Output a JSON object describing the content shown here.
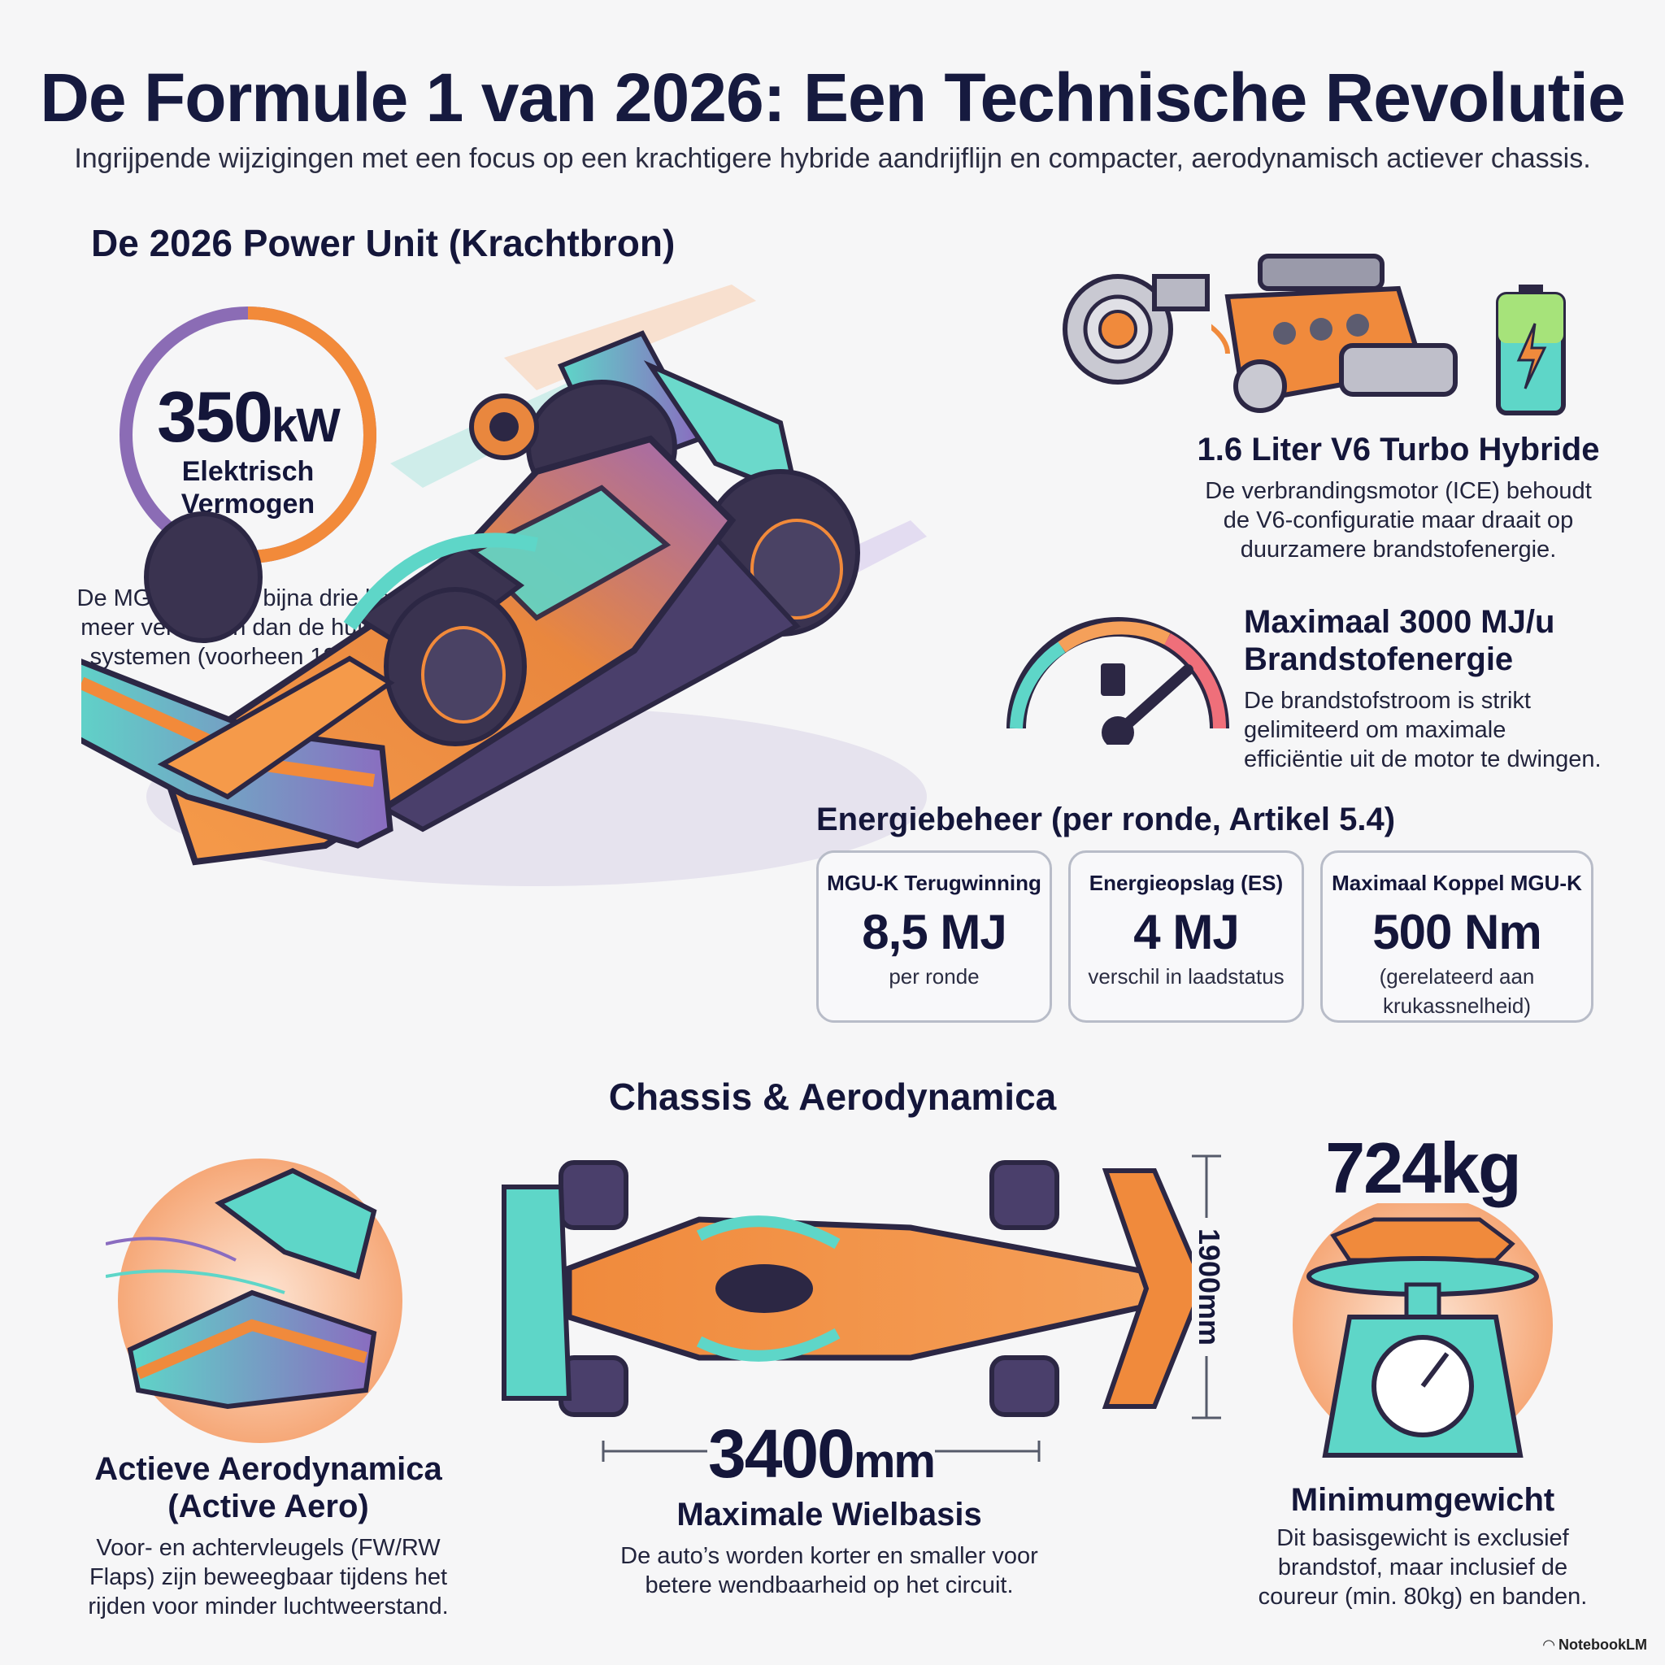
{
  "header": {
    "title": "De Formule 1 van 2026: Een Technische Revolutie",
    "subtitle": "Ingrijpende wijzigingen met een focus op een krachtigere hybride aandrijflijn en compacter, aerodynamisch actiever chassis."
  },
  "power_unit": {
    "heading": "De 2026 Power Unit (Krachtbron)",
    "electric": {
      "value": "350",
      "unit": "kW",
      "label_line1": "Elektrisch",
      "label_line2": "Vermogen",
      "desc_line1": "De MGU-K levert bijna drie keer",
      "desc_line2": "meer vermogen dan de huidige",
      "desc_line3": "systemen (voorheen 120kW)."
    },
    "engine": {
      "title": "1.6 Liter V6 Turbo Hybride",
      "desc_line1": "De verbrandingsmotor (ICE) behoudt",
      "desc_line2": "de V6-configuratie maar draait op",
      "desc_line3": "duurzamere brandstofenergie."
    },
    "fuel": {
      "title_line1": "Maximaal 3000 MJ/u",
      "title_line2": "Brandstofenergie",
      "desc_line1": "De brandstofstroom is strikt",
      "desc_line2": "gelimiteerd om maximale",
      "desc_line3": "efficiëntie uit de motor te dwingen."
    },
    "energy": {
      "heading": "Energiebeheer (per ronde, Artikel 5.4)",
      "stats": [
        {
          "label": "MGU-K Terugwinning",
          "value": "8,5 MJ",
          "sub_line1": "per ronde",
          "sub_line2": ""
        },
        {
          "label": "Energieopslag (ES)",
          "value": "4 MJ",
          "sub_line1": "verschil in laadstatus",
          "sub_line2": ""
        },
        {
          "label": "Maximaal Koppel MGU-K",
          "value": "500 Nm",
          "sub_line1": "(gerelateerd aan",
          "sub_line2": "krukassnelheid)"
        }
      ]
    }
  },
  "chassis": {
    "heading": "Chassis & Aerodynamica",
    "aero": {
      "title_line1": "Actieve Aerodynamica",
      "title_line2": "(Active Aero)",
      "desc_line1": "Voor- en achtervleugels (FW/RW",
      "desc_line2": "Flaps) zijn beweegbaar tijdens het",
      "desc_line3": "rijden voor minder luchtweerstand."
    },
    "wheelbase": {
      "value": "3400",
      "unit": "mm",
      "title": "Maximale Wielbasis",
      "desc_line1": "De auto’s worden korter en smaller voor",
      "desc_line2": "betere wendbaarheid op het circuit."
    },
    "width": {
      "value": "1900mm"
    },
    "weight": {
      "value": "724kg",
      "title": "Minimumgewicht",
      "desc_line1": "Dit basisgewicht is exclusief",
      "desc_line2": "brandstof, maar inclusief de",
      "desc_line3": "coureur (min. 80kg) en banden."
    }
  },
  "footer": {
    "brand": "NotebookLM"
  },
  "colors": {
    "navy": "#14163a",
    "orange": "#f08a3c",
    "purple": "#7a5aa8",
    "teal": "#4fd1c5",
    "dark": "#2c2744"
  },
  "icons": [
    "turbo-icon",
    "engine-icon",
    "battery-icon",
    "fuel-gauge-icon",
    "scale-icon",
    "front-wing-icon"
  ]
}
